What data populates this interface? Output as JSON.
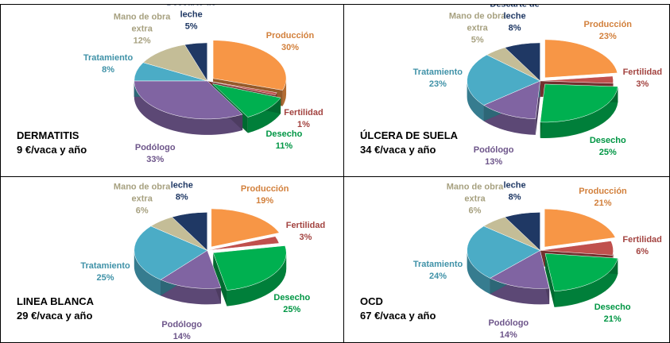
{
  "chart_data": [
    {
      "type": "pie",
      "title": "DERMATITIS",
      "subtitle": "9 €/vaca y año",
      "categories": [
        "Producción",
        "Fertilidad",
        "Desecho",
        "Podólogo",
        "Tratamiento",
        "Mano de obra extra",
        "Descarte de leche"
      ],
      "values": [
        30,
        1,
        11,
        33,
        8,
        12,
        5
      ],
      "value_labels": [
        "30%",
        "1%",
        "11%",
        "33%",
        "8%",
        "12%",
        "5%"
      ],
      "colors": [
        "#f79646",
        "#c0504d",
        "#00b050",
        "#8064a2",
        "#4bacc6",
        "#c4bd97",
        "#1f3864"
      ]
    },
    {
      "type": "pie",
      "title": "ÚLCERA DE SUELA",
      "subtitle": "34 €/vaca y año",
      "categories": [
        "Producción",
        "Fertilidad",
        "Desecho",
        "Podólogo",
        "Tratamiento",
        "Mano de obra extra",
        "Descarte de leche"
      ],
      "values": [
        23,
        3,
        25,
        13,
        23,
        5,
        8
      ],
      "value_labels": [
        "23%",
        "3%",
        "25%",
        "13%",
        "23%",
        "5%",
        "8%"
      ],
      "colors": [
        "#f79646",
        "#c0504d",
        "#00b050",
        "#8064a2",
        "#4bacc6",
        "#c4bd97",
        "#1f3864"
      ]
    },
    {
      "type": "pie",
      "title": "LINEA BLANCA",
      "subtitle": "29 €/vaca y año",
      "categories": [
        "Producción",
        "Fertilidad",
        "Desecho",
        "Podólogo",
        "Tratamiento",
        "Mano de obra extra",
        "Descarte de leche"
      ],
      "values": [
        19,
        3,
        25,
        14,
        25,
        6,
        8
      ],
      "value_labels": [
        "19%",
        "3%",
        "25%",
        "14%",
        "25%",
        "6%",
        "8%"
      ],
      "colors": [
        "#f79646",
        "#c0504d",
        "#00b050",
        "#8064a2",
        "#4bacc6",
        "#c4bd97",
        "#1f3864"
      ]
    },
    {
      "type": "pie",
      "title": "OCD",
      "subtitle": "67 €/vaca y año",
      "categories": [
        "Producción",
        "Fertilidad",
        "Desecho",
        "Podólogo",
        "Tratamiento",
        "Mano de obra extra",
        "Descarte de leche"
      ],
      "values": [
        21,
        6,
        21,
        14,
        24,
        6,
        8
      ],
      "value_labels": [
        "21%",
        "6%",
        "21%",
        "14%",
        "24%",
        "6%",
        "8%"
      ],
      "colors": [
        "#f79646",
        "#c0504d",
        "#00b050",
        "#8064a2",
        "#4bacc6",
        "#c4bd97",
        "#1f3864"
      ]
    }
  ]
}
